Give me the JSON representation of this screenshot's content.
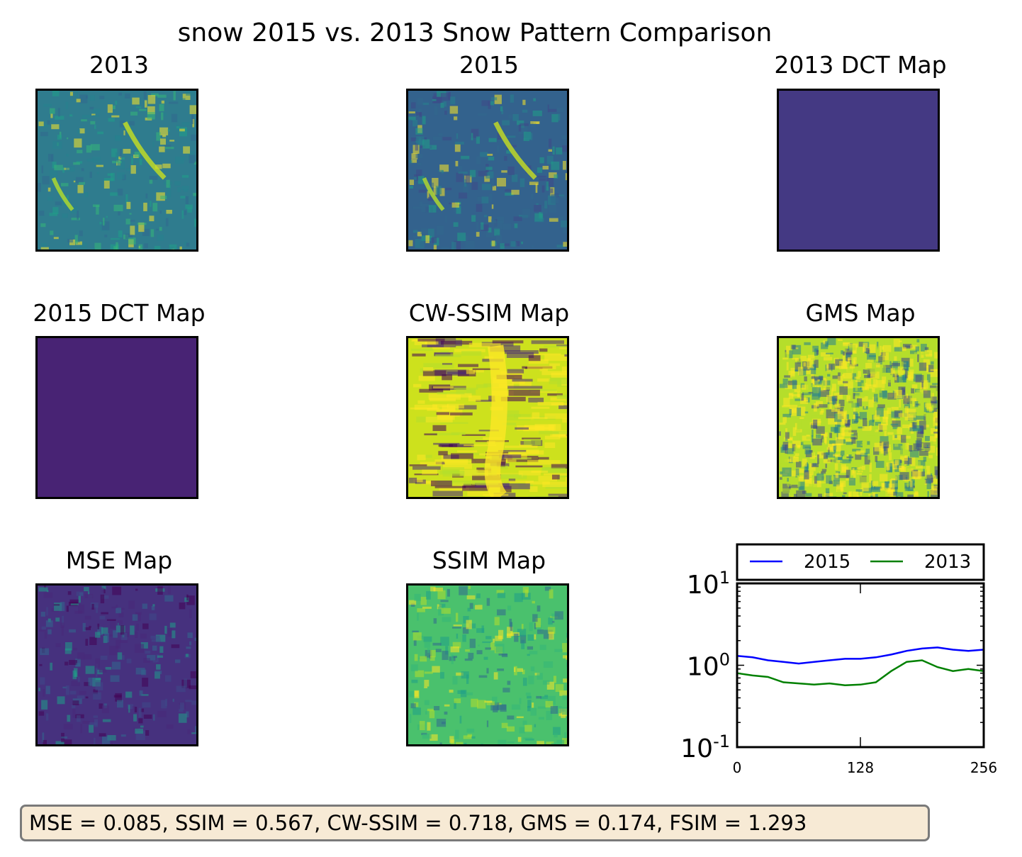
{
  "figure": {
    "title": "snow 2015 vs. 2013 Snow Pattern Comparison",
    "metrics_text": "MSE = 0.085, SSIM = 0.567, CW-SSIM = 0.718, GMS = 0.174, FSIM = 1.293"
  },
  "panels": [
    {
      "id": "p2013",
      "title": "2013",
      "base": "#2f7c8e"
    },
    {
      "id": "p2015",
      "title": "2015",
      "base": "#33628d"
    },
    {
      "id": "dct2013",
      "title": "2013 DCT Map",
      "base": "#443983"
    },
    {
      "id": "dct2015",
      "title": "2015 DCT Map",
      "base": "#482374"
    },
    {
      "id": "cwssim",
      "title": "CW-SSIM Map",
      "base": "#cde11d"
    },
    {
      "id": "gms",
      "title": "GMS Map",
      "base": "#b5de2b"
    },
    {
      "id": "mse",
      "title": "MSE Map",
      "base": "#46317e"
    },
    {
      "id": "ssim",
      "title": "SSIM Map",
      "base": "#4ac16d"
    }
  ],
  "chart_data": {
    "type": "line",
    "yscale": "log",
    "xlim": [
      0,
      256
    ],
    "ylim": [
      0.1,
      10
    ],
    "xticks": [
      "0",
      "128",
      "256"
    ],
    "yticks": [
      {
        "base": "10",
        "exp": "-1",
        "value": 0.1
      },
      {
        "base": "10",
        "exp": "0",
        "value": 1
      },
      {
        "base": "10",
        "exp": "1",
        "value": 10
      }
    ],
    "legend_position": "top (outside, above axes)",
    "series": [
      {
        "name": "2015",
        "color": "#0000ff",
        "x": [
          0,
          16,
          32,
          48,
          64,
          80,
          96,
          112,
          128,
          144,
          160,
          176,
          192,
          208,
          224,
          240,
          256
        ],
        "values": [
          1.3,
          1.25,
          1.15,
          1.1,
          1.05,
          1.1,
          1.15,
          1.2,
          1.2,
          1.25,
          1.35,
          1.5,
          1.6,
          1.65,
          1.55,
          1.5,
          1.55
        ]
      },
      {
        "name": "2013",
        "color": "#008000",
        "x": [
          0,
          16,
          32,
          48,
          64,
          80,
          96,
          112,
          128,
          144,
          160,
          176,
          192,
          208,
          224,
          240,
          256
        ],
        "values": [
          0.8,
          0.75,
          0.72,
          0.62,
          0.6,
          0.58,
          0.6,
          0.57,
          0.58,
          0.62,
          0.85,
          1.1,
          1.15,
          0.95,
          0.85,
          0.9,
          0.85
        ]
      }
    ]
  }
}
